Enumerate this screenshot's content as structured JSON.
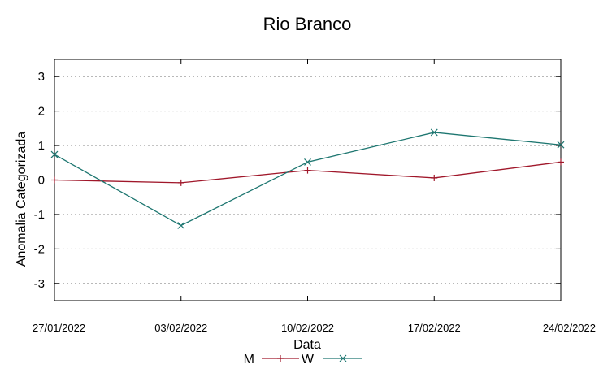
{
  "chart_data": {
    "type": "line",
    "title": "Rio Branco",
    "xlabel": "Data",
    "ylabel": "Anomalia Categorizada",
    "categories": [
      "27/01/2022",
      "03/02/2022",
      "10/02/2022",
      "17/02/2022",
      "24/02/2022"
    ],
    "ylim": [
      -3.5,
      3.5
    ],
    "yticks": [
      -3,
      -2,
      -1,
      0,
      1,
      2,
      3
    ],
    "grid": true,
    "legend": "bottom-center",
    "series": [
      {
        "name": "M",
        "values": [
          0.0,
          -0.08,
          0.28,
          0.06,
          0.52
        ],
        "color": "#a0172a",
        "marker": "plus"
      },
      {
        "name": "W",
        "values": [
          0.74,
          -1.32,
          0.52,
          1.38,
          1.02
        ],
        "color": "#1d7670",
        "marker": "x"
      }
    ]
  }
}
